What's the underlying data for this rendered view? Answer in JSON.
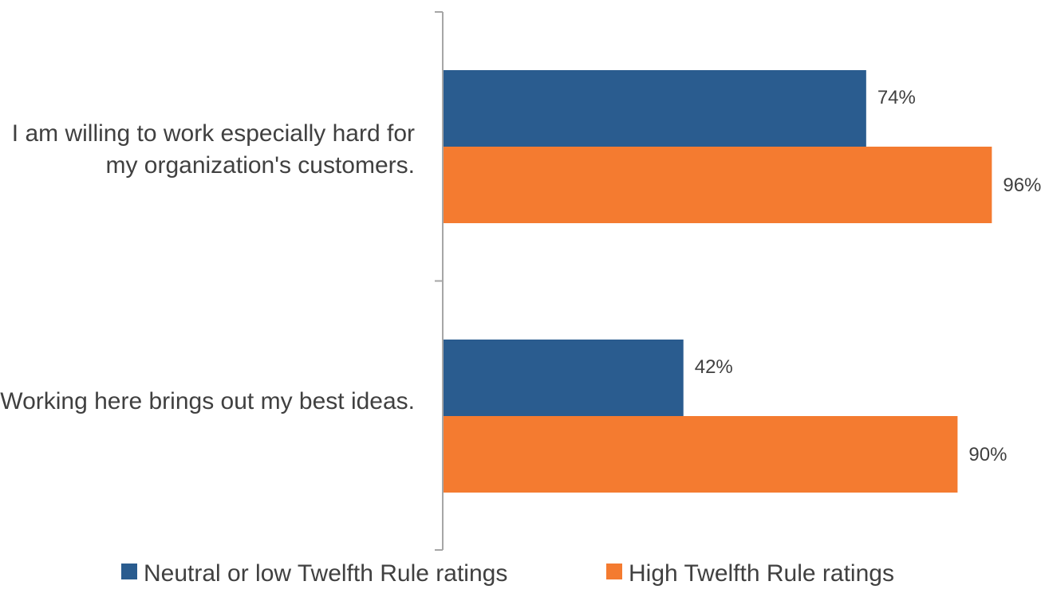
{
  "chart_data": {
    "type": "bar",
    "orientation": "horizontal",
    "categories": [
      "I am willing to work especially hard for my organization's customers.",
      "Working here brings out my best ideas."
    ],
    "series": [
      {
        "name": "Neutral or low Twelfth Rule ratings",
        "values": [
          74,
          42
        ],
        "color": "#2a5c8f",
        "labels": [
          "74%",
          "42%"
        ]
      },
      {
        "name": "High Twelfth Rule ratings",
        "values": [
          96,
          90
        ],
        "color": "#f47b30",
        "labels": [
          "96%",
          "90%"
        ]
      }
    ],
    "xlim": [
      0,
      100
    ],
    "grid": false,
    "legend_position": "bottom"
  }
}
